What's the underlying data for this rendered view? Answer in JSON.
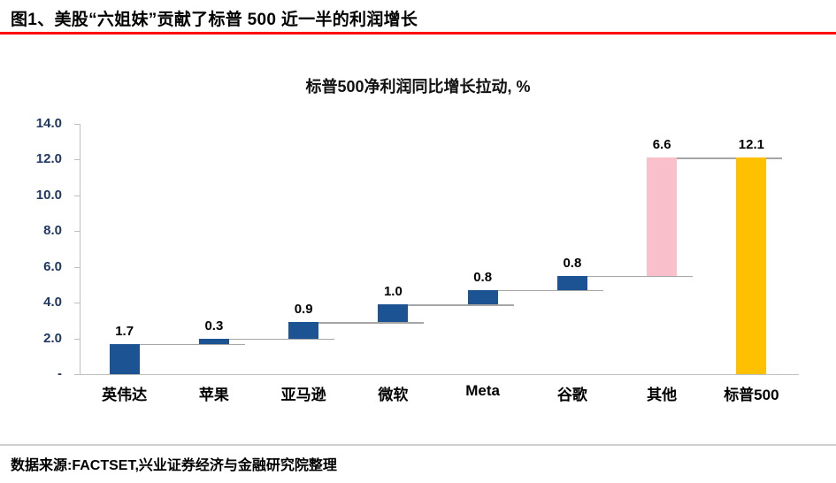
{
  "header": {
    "title": "图1、美股“六姐妹”贡献了标普 500 近一半的利润增长"
  },
  "chart_data": {
    "type": "bar",
    "subtype": "waterfall",
    "title": "标普500净利润同比增长拉动, %",
    "categories": [
      "英伟达",
      "苹果",
      "亚马逊",
      "微软",
      "Meta",
      "谷歌",
      "其他",
      "标普500"
    ],
    "values": [
      1.7,
      0.3,
      0.9,
      1.0,
      0.8,
      0.8,
      6.6,
      12.1
    ],
    "labels": [
      "1.7",
      "0.3",
      "0.9",
      "1.0",
      "0.8",
      "0.8",
      "6.6",
      "12.1"
    ],
    "bar_roles": [
      "increment",
      "increment",
      "increment",
      "increment",
      "increment",
      "increment",
      "other",
      "total"
    ],
    "cumulative_start": [
      0,
      1.7,
      2.0,
      2.9,
      3.9,
      4.7,
      5.5,
      0
    ],
    "cumulative_end": [
      1.7,
      2.0,
      2.9,
      3.9,
      4.7,
      5.5,
      12.1,
      12.1
    ],
    "y_ticks": [
      "14.0",
      "12.0",
      "10.0",
      "8.0",
      "6.0",
      "4.0",
      "2.0",
      "-"
    ],
    "y_tick_values": [
      14,
      12,
      10,
      8,
      6,
      4,
      2,
      0
    ],
    "ylim": [
      0,
      14
    ],
    "grid": false,
    "legend": false,
    "colors": {
      "increment": "#1B5393",
      "other": "#F9BFCB",
      "total": "#FFC000",
      "connector": "#A6A6A6",
      "axis": "#BFBFBF",
      "tick_label": "#1F3864",
      "title_rule": "#FF0000"
    }
  },
  "footer": {
    "source": "数据来源:FACTSET,兴业证券经济与金融研究院整理"
  }
}
